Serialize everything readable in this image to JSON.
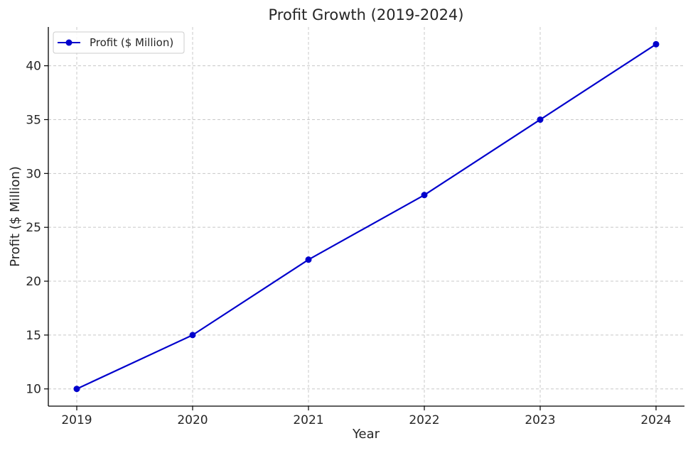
{
  "chart_data": {
    "type": "line",
    "title": "Profit Growth (2019-2024)",
    "xlabel": "Year",
    "ylabel": "Profit ($ Million)",
    "categories": [
      "2019",
      "2020",
      "2021",
      "2022",
      "2023",
      "2024"
    ],
    "series": [
      {
        "name": "Profit ($ Million)",
        "values": [
          10,
          15,
          22,
          28,
          35,
          42
        ],
        "color": "#0000cc",
        "marker": "circle"
      }
    ],
    "y_ticks": [
      10,
      15,
      20,
      25,
      30,
      35,
      40
    ],
    "ylim": [
      8.4,
      43.6
    ],
    "grid": true,
    "grid_style": "dashed",
    "legend_position": "top-left"
  }
}
